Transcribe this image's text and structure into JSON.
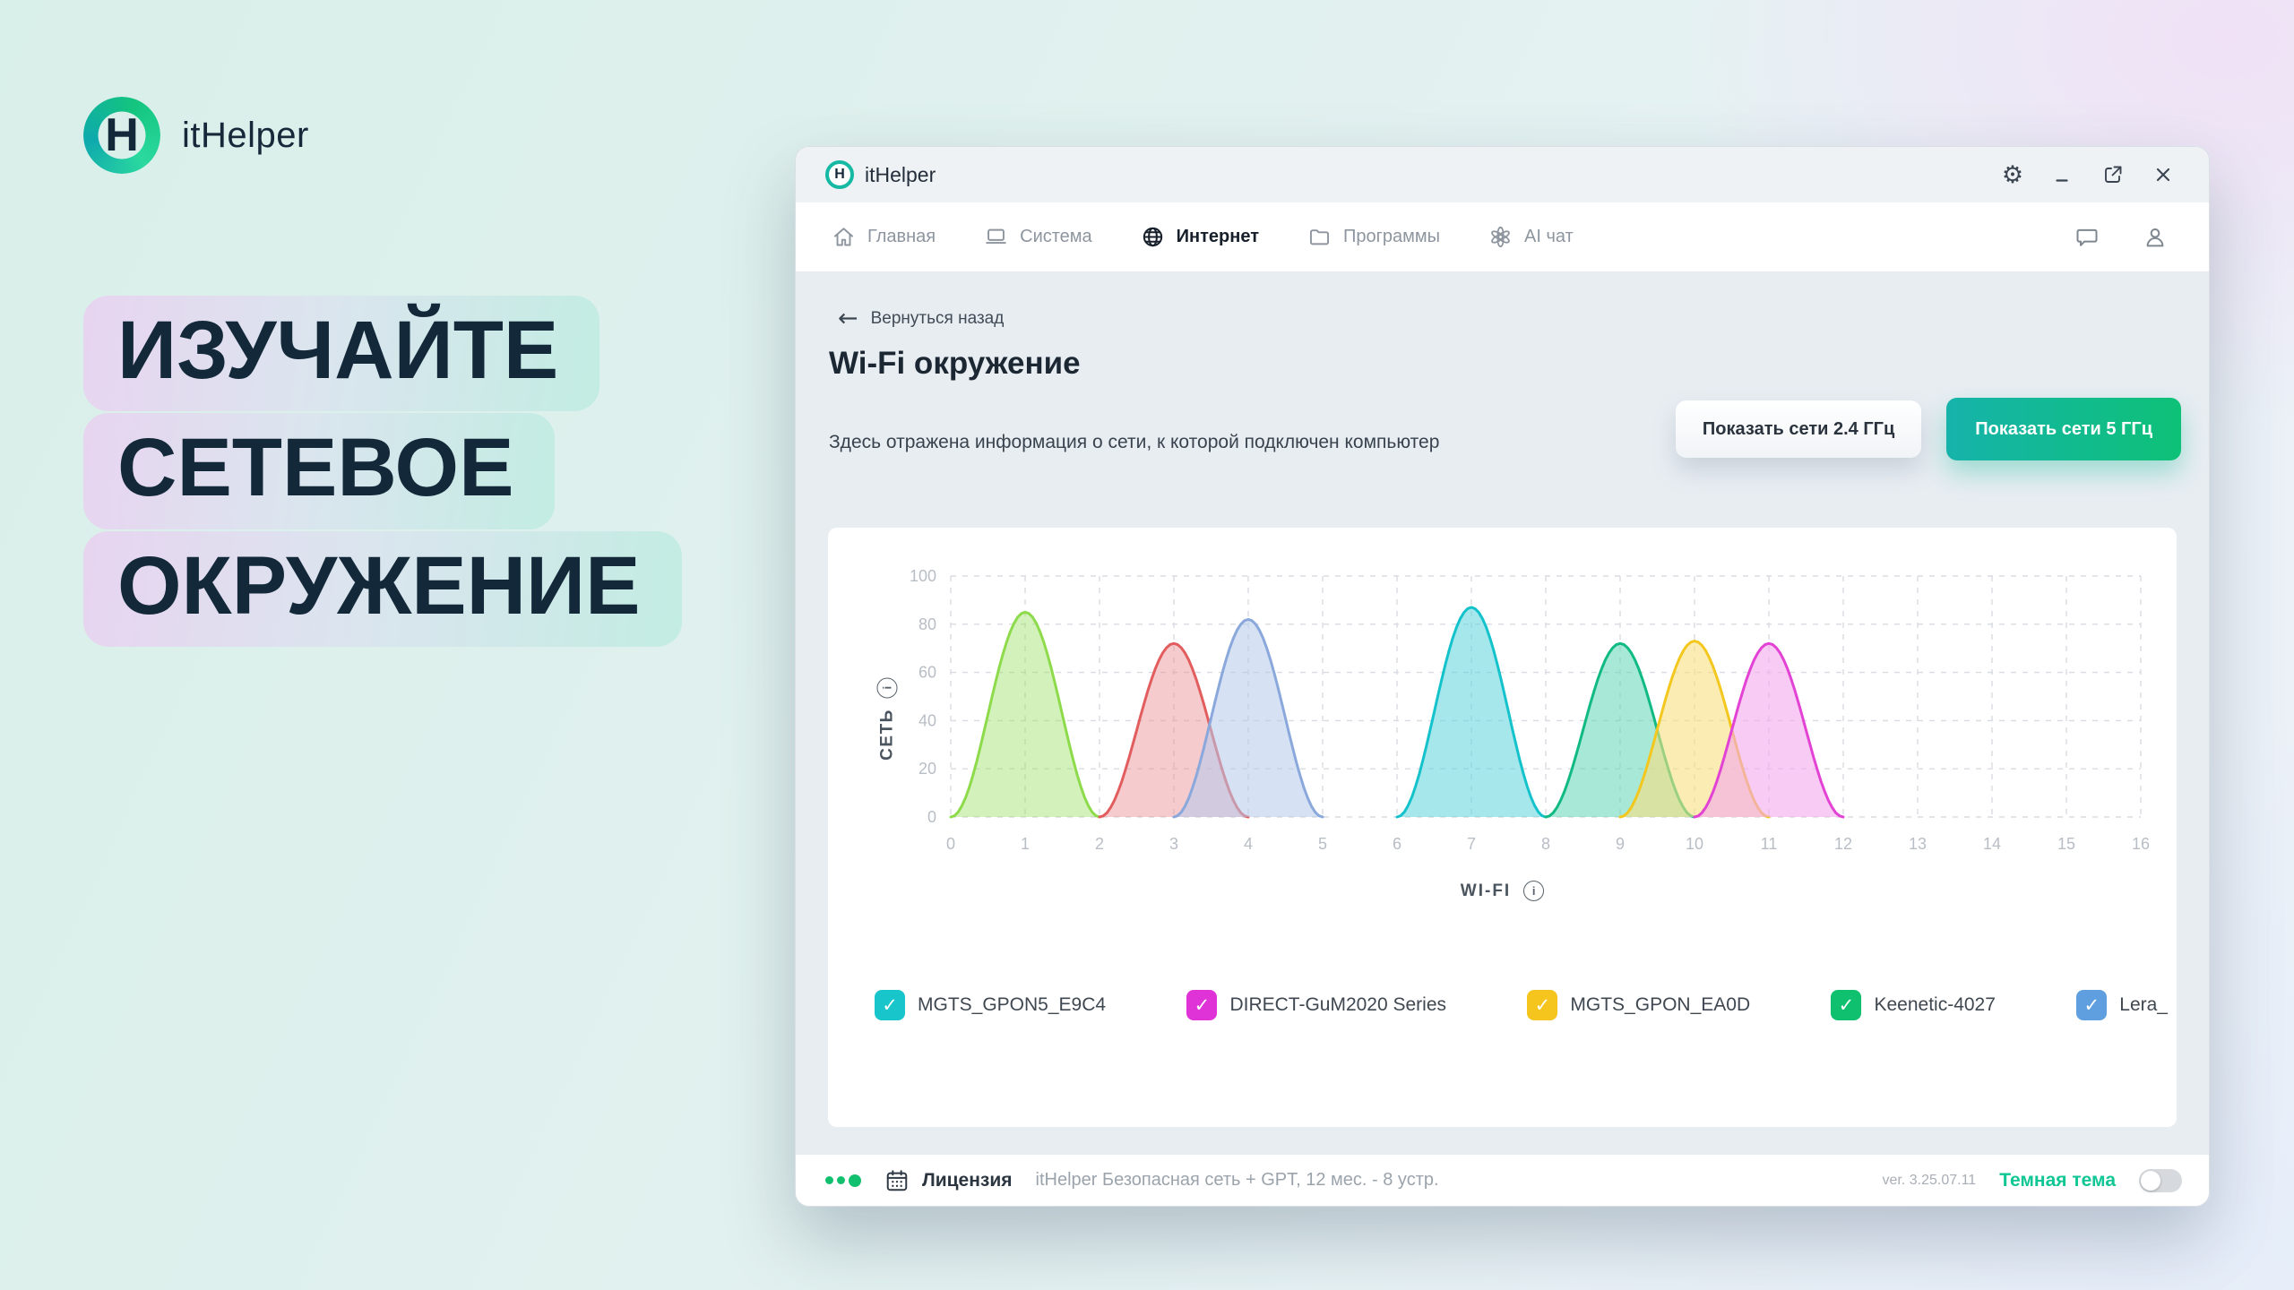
{
  "brand": {
    "name": "itHelper",
    "logo_icon": "ithelper-logo-icon",
    "logo_letter": "H"
  },
  "hero": {
    "lines": [
      "ИЗУЧАЙТЕ",
      "СЕТЕВОЕ",
      "ОКРУЖЕНИЕ"
    ]
  },
  "app": {
    "titlebar": {
      "title": "itHelper",
      "logo_icon": "ithelper-logo-icon",
      "logo_letter": "H",
      "controls": [
        {
          "name": "settings",
          "icon": "gear-icon"
        },
        {
          "name": "minimize",
          "icon": "minimize-icon"
        },
        {
          "name": "maximize",
          "icon": "maximize-icon"
        },
        {
          "name": "close",
          "icon": "close-icon"
        }
      ]
    },
    "nav": {
      "items": [
        {
          "label": "Главная",
          "icon": "home-icon",
          "active": false
        },
        {
          "label": "Система",
          "icon": "system-icon",
          "active": false
        },
        {
          "label": "Интернет",
          "icon": "globe-icon",
          "active": true
        },
        {
          "label": "Программы",
          "icon": "folder-icon",
          "active": false
        },
        {
          "label": "AI чат",
          "icon": "ai-chat-icon",
          "active": false
        }
      ],
      "right_icons": [
        {
          "name": "support-chat",
          "icon": "chat-bubble-icon"
        },
        {
          "name": "account",
          "icon": "user-icon"
        }
      ]
    },
    "content": {
      "back_label": "Вернуться назад",
      "back_icon": "back-arrow-icon",
      "title": "Wi-Fi окружение",
      "subtitle": "Здесь отражена информация о сети, к которой подключен компьютер",
      "buttons": [
        {
          "label": "Показать сети 2.4 ГГц",
          "variant": "light"
        },
        {
          "label": "Показать сети 5 ГГц",
          "variant": "accent"
        }
      ],
      "accent_color": "#0ec177"
    },
    "footer": {
      "status_dots_color": "#11c06e",
      "status_dot_sizes": [
        9,
        9,
        14
      ],
      "calendar_icon": "calendar-icon",
      "license_label": "Лицензия",
      "license_value": "itHelper Безопасная сеть + GPT, 12 мес. - 8 устр.",
      "version": "ver. 3.25.07.11",
      "theme_label": "Темная тема",
      "theme_color": "#0fc694",
      "theme_toggle_on": false
    }
  },
  "chart_data": {
    "type": "area",
    "title": "",
    "xlabel": "WI-FI",
    "ylabel": "СЕТЬ",
    "xlabel_icon": "info-icon",
    "ylabel_icon": "info-icon",
    "xlim": [
      0,
      16
    ],
    "ylim": [
      0,
      100
    ],
    "xticks": [
      0,
      1,
      2,
      3,
      4,
      5,
      6,
      7,
      8,
      9,
      10,
      11,
      12,
      13,
      14,
      15,
      16
    ],
    "yticks": [
      0,
      20,
      40,
      60,
      80,
      100
    ],
    "grid": "dashed",
    "curve_shape": "wifi-bell, width 2 channels, zero at center±1",
    "curves": [
      {
        "channel": 1,
        "peak": 85,
        "stroke": "#8ddb4b",
        "fill": "rgba(158,224,101,0.45)"
      },
      {
        "channel": 3,
        "peak": 72,
        "stroke": "#e25d5d",
        "fill": "rgba(235,140,146,0.45)"
      },
      {
        "channel": 4,
        "peak": 82,
        "stroke": "#8aa8db",
        "fill": "rgba(180,202,235,0.55)"
      },
      {
        "channel": 7,
        "peak": 87,
        "stroke": "#14c2cc",
        "fill": "rgba(92,212,219,0.55)"
      },
      {
        "channel": 9,
        "peak": 72,
        "stroke": "#10ba82",
        "fill": "rgba(96,214,182,0.55)"
      },
      {
        "channel": 10,
        "peak": 73,
        "stroke": "#f3c71e",
        "fill": "rgba(248,224,128,0.60)"
      },
      {
        "channel": 11,
        "peak": 72,
        "stroke": "#e343d4",
        "fill": "rgba(243,168,236,0.60)"
      }
    ],
    "legend": [
      {
        "label": "MGTS_GPON5_E9C4",
        "color": "#18c5cb"
      },
      {
        "label": "DIRECT-GuM2020 Series",
        "color": "#df33d8"
      },
      {
        "label": "MGTS_GPON_EA0D",
        "color": "#f5c51d"
      },
      {
        "label": "Keenetic-4027",
        "color": "#0fc06e"
      },
      {
        "label": "Lera_",
        "color": "#5f9fe0"
      }
    ],
    "legend_position": "bottom"
  }
}
